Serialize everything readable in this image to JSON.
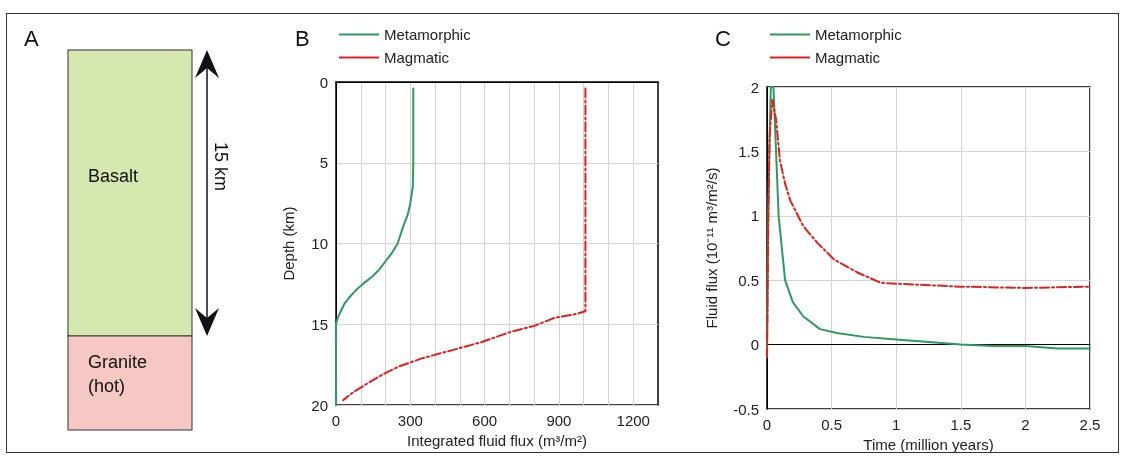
{
  "chart_data": [
    {
      "type": "other",
      "title": "A",
      "annotations": [
        "Basalt",
        "Granite (hot)",
        "15 km"
      ]
    },
    {
      "type": "line",
      "title": "B",
      "xlabel": "Integrated fluid flux (m³/m²)",
      "ylabel": "Depth (km)",
      "xlim": [
        0,
        1300
      ],
      "ylim": [
        20,
        0
      ],
      "xticks": [
        0,
        {
          "value": 100,
          "label": null
        },
        {
          "value": 200,
          "label": null
        },
        300,
        {
          "value": 400,
          "label": null
        },
        {
          "value": 500,
          "label": null
        },
        600,
        {
          "value": 700,
          "label": null
        },
        {
          "value": 800,
          "label": null
        },
        900,
        {
          "value": 1000,
          "label": null
        },
        {
          "value": 1100,
          "label": null
        },
        1200
      ],
      "yticks": [
        0,
        5,
        10,
        15,
        20
      ],
      "grid": true,
      "legend": "top left",
      "marker": "none",
      "series": [
        {
          "name": "Metamorphic",
          "color": "#2e9a5e",
          "line_style": "solid",
          "x": [
            312,
            312,
            310,
            300,
            290,
            270,
            249,
            225,
            200,
            175,
            150,
            109,
            80,
            56,
            35,
            16,
            5,
            0,
            0
          ],
          "values": [
            0.4,
            5,
            6.5,
            7.5,
            8.2,
            9,
            10,
            10.6,
            11.1,
            11.6,
            12,
            12.5,
            12.9,
            13.3,
            13.7,
            14.3,
            14.7,
            15,
            20
          ]
        },
        {
          "name": "Magmatic",
          "color": "#e02020",
          "line_style": "dashdot",
          "x": [
            1007,
            1007,
            960,
            883,
            800,
            700,
            589,
            470,
            349,
            256,
            190,
            123,
            70,
            29
          ],
          "values": [
            0.4,
            14.2,
            14.4,
            14.6,
            15.1,
            15.5,
            16.1,
            16.6,
            17.1,
            17.6,
            18.1,
            18.7,
            19.2,
            19.7
          ]
        }
      ]
    },
    {
      "type": "line",
      "title": "C",
      "xlabel": "Time (million years)",
      "ylabel": "Fluid flux (10⁻¹¹ m³/m²/s)",
      "xlim": [
        0,
        2.5
      ],
      "ylim": [
        -0.5,
        2
      ],
      "xticks": [
        0,
        0.5,
        1,
        1.5,
        2,
        2.5
      ],
      "yticks": [
        -0.5,
        0,
        0.5,
        1,
        1.5,
        2
      ],
      "grid": true,
      "legend": "top left",
      "marker": "none",
      "series": [
        {
          "name": "Metamorphic",
          "color": "#2e9a5e",
          "line_style": "solid",
          "x": [
            0,
            0.01,
            0.02,
            0.03,
            0.05,
            0.07,
            0.09,
            0.14,
            0.2,
            0.28,
            0.41,
            0.54,
            0.75,
            1,
            1.25,
            1.5,
            1.75,
            2,
            2.25,
            2.5
          ],
          "values": [
            -0.05,
            1,
            1.6,
            2,
            2,
            1.5,
            1,
            0.5,
            0.33,
            0.22,
            0.12,
            0.09,
            0.06,
            0.04,
            0.02,
            0,
            -0.01,
            -0.01,
            -0.03,
            -0.03
          ]
        },
        {
          "name": "Magmatic",
          "color": "#e02020",
          "line_style": "dashdot",
          "x": [
            0,
            0.01,
            0.02,
            0.04,
            0.07,
            0.1,
            0.14,
            0.18,
            0.28,
            0.39,
            0.52,
            0.7,
            0.88,
            1.06,
            1.5,
            2,
            2.5
          ],
          "values": [
            -0.1,
            1,
            1.6,
            1.9,
            1.75,
            1.43,
            1.25,
            1.12,
            0.92,
            0.79,
            0.66,
            0.56,
            0.48,
            0.47,
            0.45,
            0.44,
            0.45
          ]
        }
      ]
    }
  ]
}
